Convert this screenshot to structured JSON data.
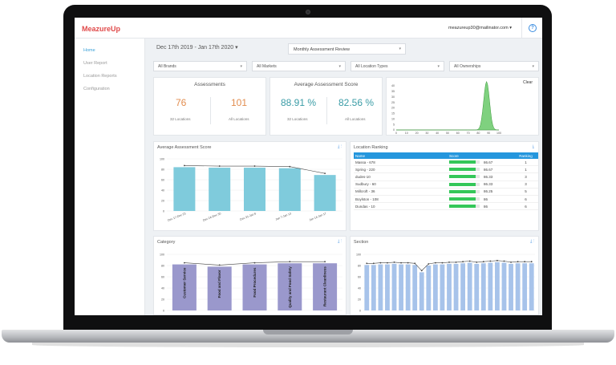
{
  "app": {
    "logo": "MeazureUp",
    "user_email": "meazureup30@mailinator.com",
    "help_icon": "?"
  },
  "sidebar": {
    "items": [
      {
        "label": "Home",
        "active": true
      },
      {
        "label": "User Report",
        "active": false
      },
      {
        "label": "Location Reports",
        "active": false
      },
      {
        "label": "Configuration",
        "active": false
      }
    ]
  },
  "filters": {
    "date_range": "Dec 17th 2019  -  Jan 17th 2020",
    "review_type": "Monthly Assessment Review",
    "brands": "All Brands",
    "markets": "All Markets",
    "location_types": "All Location Types",
    "ownerships": "All Ownerships"
  },
  "assessments": {
    "title": "Assessments",
    "value1": "76",
    "label1": "32 Locations",
    "value2": "101",
    "label2": "All Locations"
  },
  "avg_score": {
    "title": "Average Assessment Score",
    "value1": "88.91 %",
    "label1": "32 Locations",
    "value2": "82.56 %",
    "label2": "All Locations"
  },
  "distribution": {
    "clear_label": "Clear",
    "yticks": [
      "40",
      "35",
      "30",
      "25",
      "20",
      "15",
      "10",
      "5",
      "0"
    ],
    "xticks": [
      "0",
      "10",
      "20",
      "30",
      "40",
      "50",
      "60",
      "70",
      "80",
      "90",
      "100"
    ],
    "color": "#7fd17f"
  },
  "avg_chart": {
    "title": "Average Assessment Score",
    "color": "#7fcbdc",
    "chart_data": {
      "type": "bar",
      "categories": [
        "Dec 17-Dec 23",
        "Dec 24-Dec 30",
        "Dec 31-Jan 6",
        "Jan 7-Jan 13",
        "Jan 14-Jan 17"
      ],
      "values": [
        84,
        83,
        83,
        82,
        69
      ],
      "ylim": [
        0,
        100
      ],
      "yticks": [
        "100",
        "80",
        "60",
        "40",
        "20",
        "0"
      ]
    }
  },
  "ranking": {
    "title": "Location Ranking",
    "headers": [
      "Name",
      "Score",
      "Ranking"
    ],
    "rows": [
      {
        "name": "Massa - 678",
        "score": "86.67",
        "rank": "1"
      },
      {
        "name": "Spring - 220",
        "score": "86.67",
        "rank": "1"
      },
      {
        "name": "dudes-10",
        "score": "86.33",
        "rank": "3"
      },
      {
        "name": "Sudbury - 60",
        "score": "86.33",
        "rank": "3"
      },
      {
        "name": "Millcroft - 36",
        "score": "86.25",
        "rank": "5"
      },
      {
        "name": "Boylston - 108",
        "score": "86",
        "rank": "6"
      },
      {
        "name": "Dundas - 10",
        "score": "86",
        "rank": "6"
      }
    ],
    "bar_color": "#34c759"
  },
  "category": {
    "title": "Category",
    "color": "#9a98cc",
    "chart_data": {
      "type": "bar",
      "categories": [
        "Customer Service",
        "Food and Flavor",
        "Food Procedures",
        "Quality and Food Safety",
        "Restaurant Cleanliness"
      ],
      "values": [
        82,
        78,
        82,
        84,
        84
      ],
      "ylim": [
        0,
        100
      ],
      "yticks": [
        "100",
        "80",
        "60",
        "40",
        "20",
        "0"
      ]
    }
  },
  "section": {
    "title": "Section",
    "color": "#a7c3ea",
    "chart_data": {
      "type": "bar",
      "values": [
        81,
        81,
        82,
        82,
        83,
        82,
        82,
        81,
        68,
        80,
        82,
        82,
        83,
        83,
        84,
        85,
        83,
        84,
        85,
        86,
        85,
        83,
        84,
        84,
        84
      ],
      "ylim": [
        0,
        100
      ],
      "yticks": [
        "100",
        "80",
        "60",
        "40",
        "20",
        "0"
      ]
    }
  }
}
